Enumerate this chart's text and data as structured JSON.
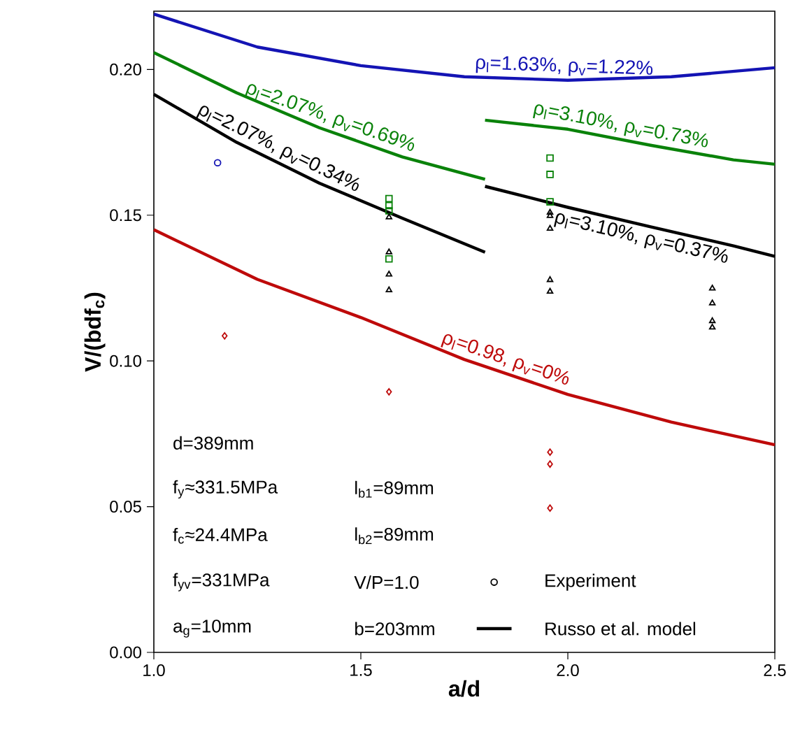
{
  "chart_data": {
    "type": "line",
    "xlabel": "a/d",
    "ylabel": "V/(bdf$_{c}$)",
    "xlim": [
      1.0,
      2.5
    ],
    "ylim": [
      0,
      0.22
    ],
    "xticks": [
      {
        "value": 1.0,
        "label": "1.0"
      },
      {
        "value": 1.5,
        "label": "1.5"
      },
      {
        "value": 2.0,
        "label": "2.0"
      },
      {
        "value": 2.5,
        "label": "2.5"
      }
    ],
    "yticks": [
      {
        "value": 0,
        "label": "0.00"
      },
      {
        "value": 0.05,
        "label": "0.05"
      },
      {
        "value": 0.1,
        "label": "0.10"
      },
      {
        "value": 0.15,
        "label": "0.15"
      },
      {
        "value": 0.2,
        "label": "0.20"
      }
    ],
    "grid": false,
    "series": [
      {
        "name": "ρ$_{l}$=1.63%, ρ$_{v}$=1.22%",
        "color": "#1414b4",
        "x": [
          1.0,
          1.25,
          1.5,
          1.75,
          2.0,
          2.25,
          2.5
        ],
        "values": [
          0.219,
          0.2077,
          0.2013,
          0.1975,
          0.1963,
          0.1975,
          0.2006
        ]
      },
      {
        "name": "ρ$_{l}$=2.07%, ρ$_{v}$=0.69%",
        "color": "#0a820a",
        "x": [
          1.0,
          1.2,
          1.4,
          1.6,
          1.8
        ],
        "values": [
          0.2058,
          0.192,
          0.18,
          0.17,
          0.1623
        ]
      },
      {
        "name": "ρ$_{l}$=2.07%, ρ$_{v}$=0.34%",
        "color": "#000000",
        "x": [
          1.0,
          1.2,
          1.4,
          1.6,
          1.8
        ],
        "values": [
          0.1915,
          0.175,
          0.161,
          0.149,
          0.1373
        ]
      },
      {
        "name": "ρ$_{l}$=3.10%, ρ$_{v}$=0.73%",
        "color": "#0a820a",
        "x": [
          1.8,
          2.0,
          2.2,
          2.4,
          2.5
        ],
        "values": [
          0.1826,
          0.1795,
          0.174,
          0.169,
          0.1675
        ]
      },
      {
        "name": "ρ$_{l}$=3.10%, ρ$_{v}$=0.37%",
        "color": "#000000",
        "x": [
          1.8,
          2.0,
          2.2,
          2.4,
          2.5
        ],
        "values": [
          0.1599,
          0.1527,
          0.146,
          0.1395,
          0.1359
        ]
      },
      {
        "name": "ρ$_{l}$=0.98, ρ$_{v}$=0%",
        "color": "#be0a0a",
        "x": [
          1.0,
          1.25,
          1.5,
          1.75,
          2.0,
          2.25,
          2.5
        ],
        "values": [
          0.145,
          0.128,
          0.1149,
          0.1005,
          0.0885,
          0.079,
          0.0712
        ]
      },
      {
        "type": "scatter",
        "marker": "circle",
        "color": "#1414b4",
        "x": [
          1.154
        ],
        "values": [
          0.168
        ]
      },
      {
        "type": "scatter",
        "marker": "diamond",
        "color": "#be0a0a",
        "x": [
          1.171,
          1.568,
          1.957,
          1.957,
          1.957
        ],
        "values": [
          0.1086,
          0.0894,
          0.0687,
          0.0646,
          0.0495
        ]
      },
      {
        "type": "scatter",
        "marker": "square",
        "color": "#0a820a",
        "x": [
          1.568,
          1.568,
          1.568,
          1.568,
          1.957,
          1.957,
          1.957
        ],
        "values": [
          0.1557,
          0.1533,
          0.1515,
          0.135,
          0.1696,
          0.164,
          0.1546
        ]
      },
      {
        "type": "scatter",
        "marker": "triangle",
        "color": "#000000",
        "x": [
          1.568,
          1.568,
          1.568,
          1.568,
          1.957,
          1.957,
          1.957,
          1.957,
          1.957,
          2.349,
          2.349,
          2.349,
          2.349
        ],
        "values": [
          0.1493,
          0.1373,
          0.1297,
          0.1243,
          0.1509,
          0.1498,
          0.1454,
          0.1278,
          0.1238,
          0.1249,
          0.1198,
          0.1137,
          0.1115
        ]
      }
    ],
    "annotations": [
      "d=389mm",
      "f$_{y}$≈331.5MPa",
      "l$_{b1}$=89mm",
      "f$_{c}$≈24.4MPa",
      "l$_{b2}$=89mm",
      "f$_{yv}$=331MPa",
      "V/P=1.0",
      "a$_{g}$=10mm",
      "b=203mm",
      "Experiment",
      "Russo et al. model"
    ]
  }
}
